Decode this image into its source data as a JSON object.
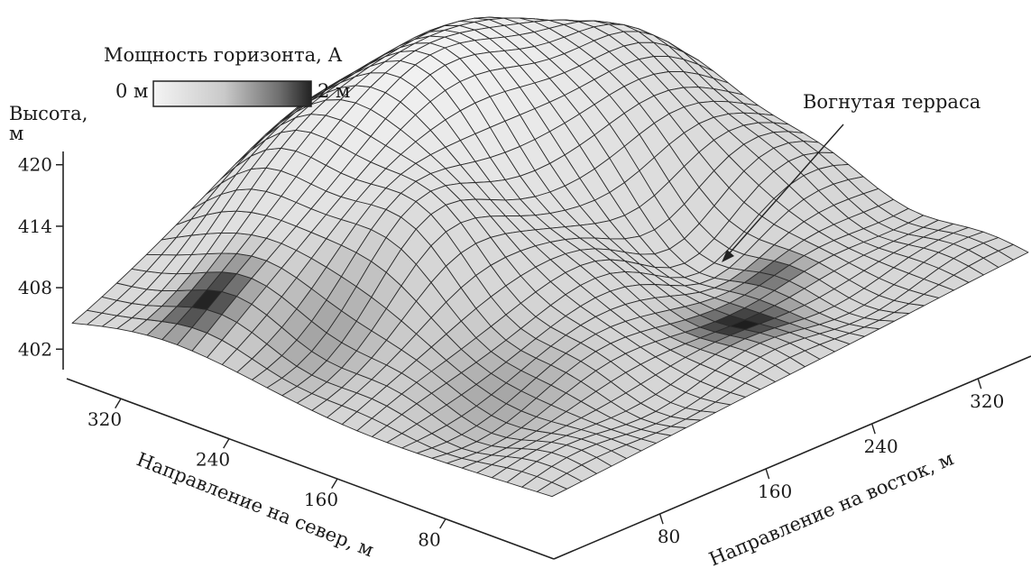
{
  "chart_data": {
    "type": "surface3d",
    "title": "",
    "colorbar": {
      "title": "Мощность горизонта, А",
      "min_label": "0 м",
      "max_label": "2 м",
      "min": 0,
      "max": 2,
      "color_low": "#f4f4f4",
      "color_high": "#222222"
    },
    "z_axis": {
      "label_line1": "Высота,",
      "label_line2": "м",
      "ticks": [
        "402",
        "408",
        "414",
        "420"
      ],
      "range": [
        400,
        422
      ]
    },
    "north_axis": {
      "label": "Направление на север, м",
      "ticks": [
        "80",
        "160",
        "240",
        "320"
      ],
      "range": [
        0,
        360
      ]
    },
    "east_axis": {
      "label": "Направление на восток, м",
      "ticks": [
        "80",
        "160",
        "240",
        "320"
      ],
      "range": [
        0,
        360
      ]
    },
    "annotation": {
      "text": "Вогнутая терраса"
    },
    "grid_on": true
  }
}
